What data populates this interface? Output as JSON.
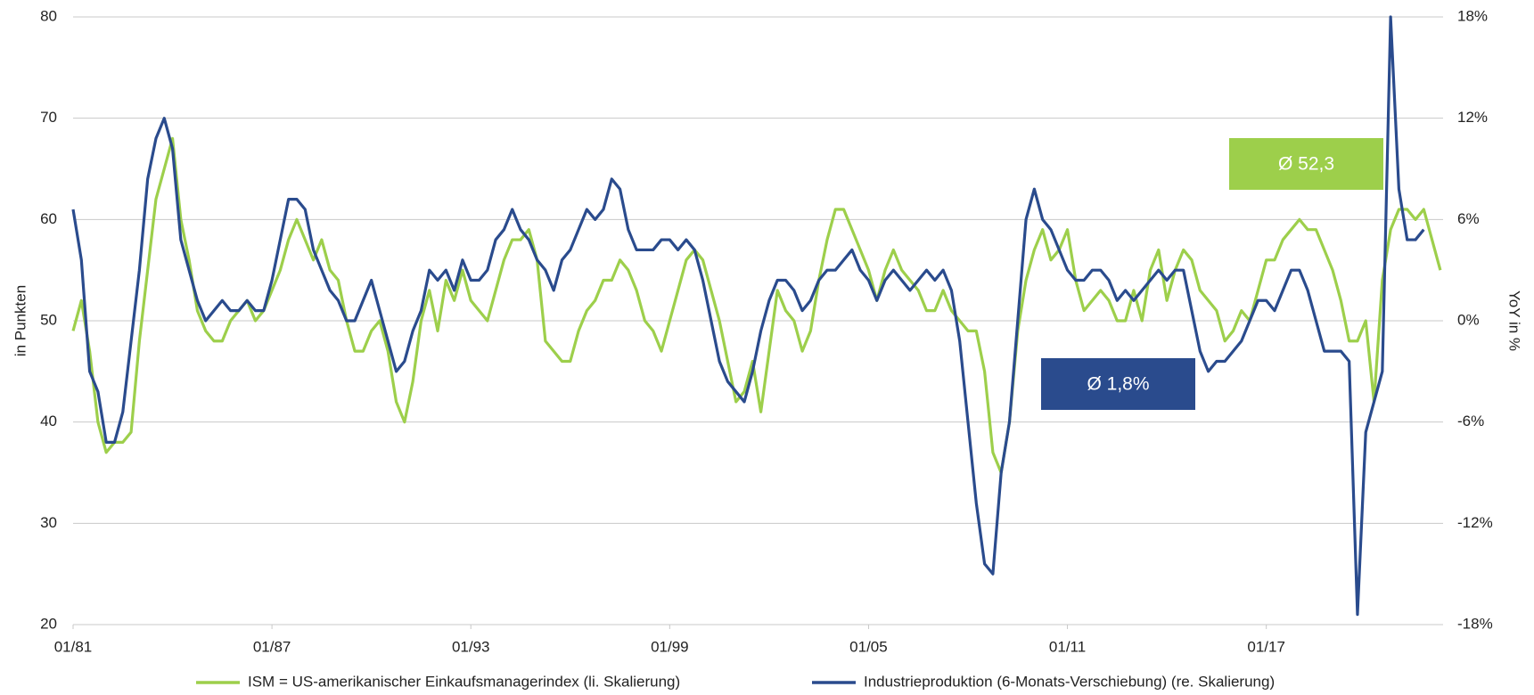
{
  "chart_data": {
    "type": "line",
    "y_label": "in Punkten",
    "y2_label": "YoY in %",
    "x": [
      "01/81",
      "04/81",
      "07/81",
      "10/81",
      "01/82",
      "04/82",
      "07/82",
      "10/82",
      "01/83",
      "04/83",
      "07/83",
      "10/83",
      "01/84",
      "04/84",
      "07/84",
      "10/84",
      "01/85",
      "04/85",
      "07/85",
      "10/85",
      "01/86",
      "04/86",
      "07/86",
      "10/86",
      "01/87",
      "04/87",
      "07/87",
      "10/87",
      "01/88",
      "04/88",
      "07/88",
      "10/88",
      "01/89",
      "04/89",
      "07/89",
      "10/89",
      "01/90",
      "04/90",
      "07/90",
      "10/90",
      "01/91",
      "04/91",
      "07/91",
      "10/91",
      "01/92",
      "04/92",
      "07/92",
      "10/92",
      "01/93",
      "04/93",
      "07/93",
      "10/93",
      "01/94",
      "04/94",
      "07/94",
      "10/94",
      "01/95",
      "04/95",
      "07/95",
      "10/95",
      "01/96",
      "04/96",
      "07/96",
      "10/96",
      "01/97",
      "04/97",
      "07/97",
      "10/97",
      "01/98",
      "04/98",
      "07/98",
      "10/98",
      "01/99",
      "04/99",
      "07/99",
      "10/99",
      "01/00",
      "04/00",
      "07/00",
      "10/00",
      "01/01",
      "04/01",
      "07/01",
      "10/01",
      "01/02",
      "04/02",
      "07/02",
      "10/02",
      "01/03",
      "04/03",
      "07/03",
      "10/03",
      "01/04",
      "04/04",
      "07/04",
      "10/04",
      "01/05",
      "04/05",
      "07/05",
      "10/05",
      "01/06",
      "04/06",
      "07/06",
      "10/06",
      "01/07",
      "04/07",
      "07/07",
      "10/07",
      "01/08",
      "04/08",
      "07/08",
      "10/08",
      "01/09",
      "04/09",
      "07/09",
      "10/09",
      "01/10",
      "04/10",
      "07/10",
      "10/10",
      "01/11",
      "04/11",
      "07/11",
      "10/11",
      "01/12",
      "04/12",
      "07/12",
      "10/12",
      "01/13",
      "04/13",
      "07/13",
      "10/13",
      "01/14",
      "04/14",
      "07/14",
      "10/14",
      "01/15",
      "04/15",
      "07/15",
      "10/15",
      "01/16",
      "04/16",
      "07/16",
      "10/16",
      "01/17",
      "04/17",
      "07/17",
      "10/17",
      "01/18",
      "04/18",
      "07/18",
      "10/18",
      "01/19",
      "04/19",
      "07/19",
      "10/19",
      "01/20",
      "04/20",
      "07/20",
      "10/20",
      "01/21",
      "04/21",
      "07/21",
      "10/21",
      "01/22",
      "04/22"
    ],
    "xlim": [
      "01/81",
      "05/22"
    ],
    "xticks": [
      "01/81",
      "01/87",
      "01/93",
      "01/99",
      "01/05",
      "01/11",
      "01/17"
    ],
    "ylim": [
      20,
      80
    ],
    "yticks": [
      20,
      30,
      40,
      50,
      60,
      70,
      80
    ],
    "y2lim": [
      -18,
      18
    ],
    "y2ticks": [
      {
        "value": -18,
        "label": "-18%"
      },
      {
        "value": -12,
        "label": "-12%"
      },
      {
        "value": -6,
        "label": "-6%"
      },
      {
        "value": 0,
        "label": "0%"
      },
      {
        "value": 6,
        "label": "6%"
      },
      {
        "value": 12,
        "label": "12%"
      },
      {
        "value": 18,
        "label": "18%"
      }
    ],
    "grid": true,
    "legend": "bottom",
    "series": [
      {
        "name": "ISM = US-amerikanischer Einkaufsmanagerindex (li. Skalierung)",
        "color": "#9dcf4b",
        "values": [
          49,
          52,
          47,
          40,
          37,
          38,
          38,
          39,
          48,
          55,
          62,
          65,
          68,
          60,
          56,
          51,
          49,
          48,
          48,
          50,
          51,
          52,
          50,
          51,
          53,
          55,
          58,
          60,
          58,
          56,
          58,
          55,
          54,
          50,
          47,
          47,
          49,
          50,
          47,
          42,
          40,
          44,
          50,
          53,
          49,
          54,
          52,
          55,
          52,
          51,
          50,
          53,
          56,
          58,
          58,
          59,
          56,
          48,
          47,
          46,
          46,
          49,
          51,
          52,
          54,
          54,
          56,
          55,
          53,
          50,
          49,
          47,
          50,
          53,
          56,
          57,
          56,
          53,
          50,
          46,
          42,
          43,
          46,
          41,
          47,
          53,
          51,
          50,
          47,
          49,
          54,
          58,
          61,
          61,
          59,
          57,
          55,
          52,
          55,
          57,
          55,
          54,
          53,
          51,
          51,
          53,
          51,
          50,
          49,
          49,
          45,
          37,
          35,
          40,
          49,
          54,
          57,
          59,
          56,
          57,
          59,
          54,
          51,
          52,
          53,
          52,
          50,
          50,
          53,
          50,
          55,
          57,
          52,
          55,
          57,
          56,
          53,
          52,
          51,
          48,
          49,
          51,
          50,
          53,
          56,
          56,
          58,
          59,
          60,
          59,
          59,
          57,
          55,
          52,
          48,
          48,
          50,
          42,
          54,
          59,
          61,
          61,
          60,
          61,
          58,
          55
        ]
      },
      {
        "name": "Industrieproduktion (6-Monats-Verschiebung) (re. Skalierung)",
        "color": "#2a4b8d",
        "axis": "y2",
        "values": [
          6.6,
          3.6,
          -3,
          -4.2,
          -7.2,
          -7.2,
          -5.4,
          -1.2,
          3,
          8.4,
          10.8,
          12,
          10.2,
          4.8,
          3,
          1.2,
          0,
          0.6,
          1.2,
          0.6,
          0.6,
          1.2,
          0.6,
          0.6,
          2.4,
          4.8,
          7.2,
          7.2,
          6.6,
          4.2,
          3,
          1.8,
          1.2,
          0,
          0,
          1.2,
          2.4,
          0.6,
          -1.2,
          -3,
          -2.4,
          -0.6,
          0.6,
          3,
          2.4,
          3,
          1.8,
          3.6,
          2.4,
          2.4,
          3,
          4.8,
          5.4,
          6.6,
          5.4,
          4.8,
          3.6,
          3,
          1.8,
          3.6,
          4.2,
          5.4,
          6.6,
          6,
          6.6,
          8.4,
          7.8,
          5.4,
          4.2,
          4.2,
          4.2,
          4.8,
          4.8,
          4.2,
          4.8,
          4.2,
          2.4,
          0,
          -2.4,
          -3.6,
          -4.2,
          -4.8,
          -3,
          -0.6,
          1.2,
          2.4,
          2.4,
          1.8,
          0.6,
          1.2,
          2.4,
          3,
          3,
          3.6,
          4.2,
          3,
          2.4,
          1.2,
          2.4,
          3,
          2.4,
          1.8,
          2.4,
          3,
          2.4,
          3,
          1.8,
          -1.2,
          -6,
          -10.8,
          -14.4,
          -15,
          -9,
          -6,
          0,
          6,
          7.8,
          6,
          5.4,
          4.2,
          3,
          2.4,
          2.4,
          3,
          3,
          2.4,
          1.2,
          1.8,
          1.2,
          1.8,
          2.4,
          3,
          2.4,
          3,
          3,
          0.6,
          -1.8,
          -3,
          -2.4,
          -2.4,
          -1.8,
          -1.2,
          0,
          1.2,
          1.2,
          0.6,
          1.8,
          3,
          3,
          1.8,
          0,
          -1.8,
          -1.8,
          -1.8,
          -2.4,
          -17.4,
          -6.6,
          -4.8,
          -3,
          18,
          7.8,
          4.8,
          4.8,
          5.4,
          null,
          null
        ]
      }
    ],
    "annotations": [
      {
        "text": "Ø 52,3",
        "color": "#9dcf4b"
      },
      {
        "text": "Ø 1,8%",
        "color": "#2a4b8d"
      }
    ]
  }
}
